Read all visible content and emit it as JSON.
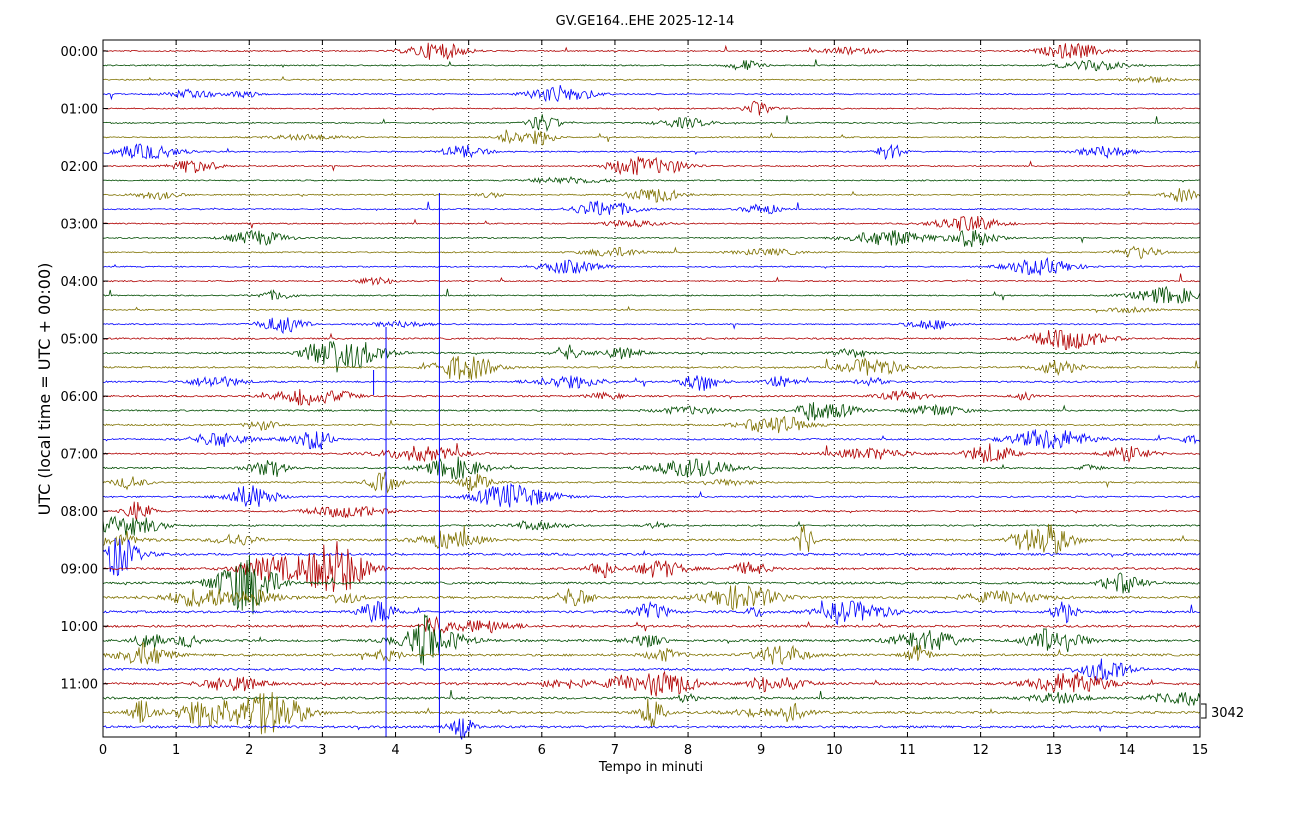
{
  "chart_data": {
    "type": "line",
    "title": "GV.GE164..EHE 2025-12-14",
    "xlabel": "Tempo in minuti",
    "ylabel": "UTC (local time = UTC + 00:00)",
    "xlim": [
      0,
      15
    ],
    "x_ticks": [
      "0",
      "1",
      "2",
      "3",
      "4",
      "5",
      "6",
      "7",
      "8",
      "9",
      "10",
      "11",
      "12",
      "13",
      "14",
      "15"
    ],
    "y_ticks": [
      "00:00",
      "01:00",
      "02:00",
      "03:00",
      "04:00",
      "05:00",
      "06:00",
      "07:00",
      "08:00",
      "09:00",
      "10:00",
      "11:00"
    ],
    "scale_label": "3042",
    "grid": "vertical dotted",
    "trace_colors": [
      "#b00000",
      "#004d00",
      "#7f7200",
      "#0000ff"
    ],
    "trace_count": 48
  }
}
